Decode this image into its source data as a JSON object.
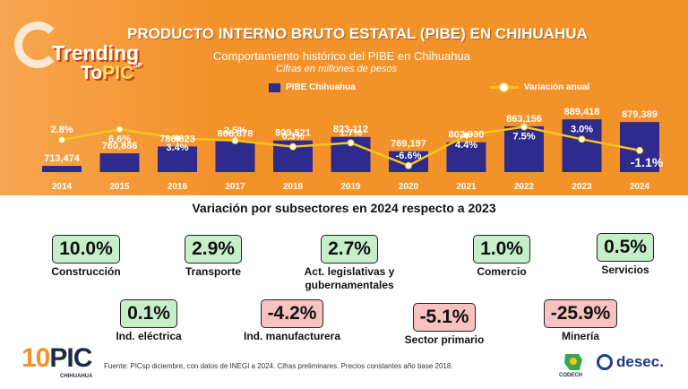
{
  "header": {
    "title": "PRODUCTO INTERNO BRUTO ESTATAL (PIBE) EN CHIHUAHUA",
    "subtitle": "Comportamiento histórico del PIBE en Chihuahua",
    "units": "Cifras en millones de pesos"
  },
  "logo": {
    "trending": "Trending",
    "to": "To",
    "pic": "PIC",
    "sp": "SP"
  },
  "legend": {
    "bars": "PIBE Chihuahua",
    "line": "Variación anual"
  },
  "colors": {
    "orange": "#f4922a",
    "bar": "#2e2b8c",
    "line": "#f5c518",
    "positive": "#c6efc9",
    "negative": "#f7c2bf"
  },
  "chart_data": {
    "type": "bar",
    "title": "PRODUCTO INTERNO BRUTO ESTATAL (PIBE) EN CHIHUAHUA",
    "categories": [
      "2014",
      "2015",
      "2016",
      "2017",
      "2018",
      "2019",
      "2020",
      "2021",
      "2022",
      "2023",
      "2024"
    ],
    "series": [
      {
        "name": "PIBE Chihuahua",
        "type": "bar",
        "values": [
          713474,
          760886,
          786823,
          806878,
          809521,
          823112,
          769197,
          802930,
          863156,
          889418,
          879389
        ],
        "labels": [
          "713,474",
          "760,886",
          "786,823",
          "806,878",
          "809,521",
          "823,112",
          "769,197",
          "802,930",
          "863,156",
          "889,418",
          "879,389"
        ]
      },
      {
        "name": "Variación anual",
        "type": "line",
        "values": [
          2.8,
          6.6,
          3.4,
          2.5,
          0.3,
          1.7,
          -6.6,
          4.4,
          7.5,
          3.0,
          -1.1
        ],
        "labels": [
          "2.8%",
          "6.6%",
          "3.4%",
          "2.5%",
          "0.3%",
          "1.7%",
          "-6.6%",
          "4.4%",
          "7.5%",
          "3.0%",
          "-1.1%"
        ]
      }
    ],
    "xlabel": "",
    "ylabel": "Cifras en millones de pesos",
    "legend": "top-center"
  },
  "subsectors": {
    "title": "Variación por subsectores en 2024 respecto a 2023",
    "items": [
      {
        "value": "10.0%",
        "label": "Construcción",
        "sign": "pos"
      },
      {
        "value": "2.9%",
        "label": "Transporte",
        "sign": "pos"
      },
      {
        "value": "2.7%",
        "label": "Act. legislativas y gubernamentales",
        "sign": "pos"
      },
      {
        "value": "1.0%",
        "label": "Comercio",
        "sign": "pos"
      },
      {
        "value": "0.5%",
        "label": "Servicios",
        "sign": "pos"
      },
      {
        "value": "0.1%",
        "label": "Ind. eléctrica",
        "sign": "pos"
      },
      {
        "value": "-4.2%",
        "label": "Ind. manufacturera",
        "sign": "neg"
      },
      {
        "value": "-5.1%",
        "label": "Sector primario",
        "sign": "neg"
      },
      {
        "value": "-25.9%",
        "label": "Minería",
        "sign": "neg"
      }
    ]
  },
  "footer": {
    "logo_ten": "10",
    "logo_pic": "PIC",
    "logo_sub": "CHIHUAHUA",
    "source": "Fuente:  PICsp diciembre, con datos de INEGI a 2024. Cifras preliminares. Precios constantes año base 2018.",
    "codech": "CODECH",
    "desec": "desec."
  }
}
